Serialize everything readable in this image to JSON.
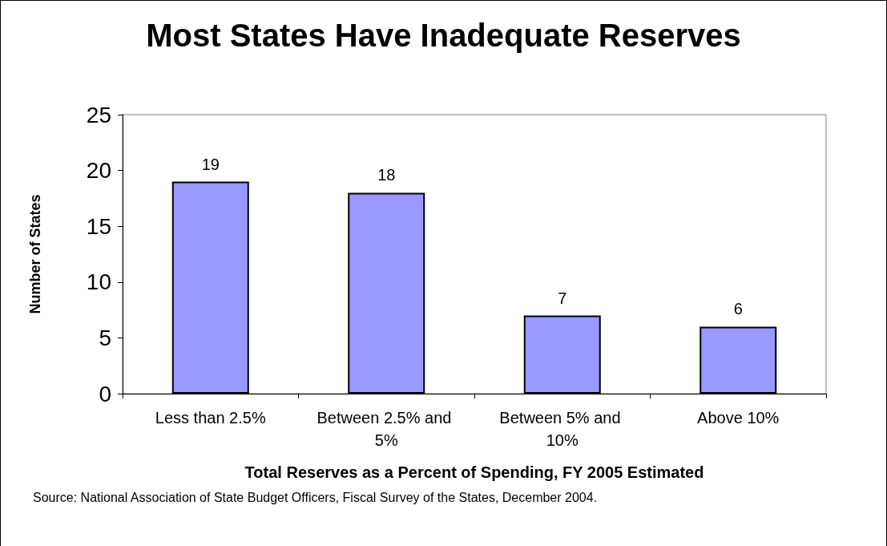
{
  "chart_data": {
    "type": "bar",
    "title": "Most States Have Inadequate Reserves",
    "xlabel": "Total Reserves as a Percent of Spending, FY 2005 Estimated",
    "ylabel": "Number of States",
    "categories": [
      "Less than 2.5%",
      "Between 2.5% and 5%",
      "Between 5% and 10%",
      "Above 10%"
    ],
    "values": [
      19,
      18,
      7,
      6
    ],
    "color": "#9999ff",
    "data_labels": true,
    "ylim": [
      0,
      25
    ],
    "yticks": [
      0,
      5,
      10,
      15,
      20,
      25
    ],
    "grid": false,
    "annotations": [
      "Source: National Association of State Budget Officers, Fiscal Survey of the States, December 2004."
    ]
  }
}
